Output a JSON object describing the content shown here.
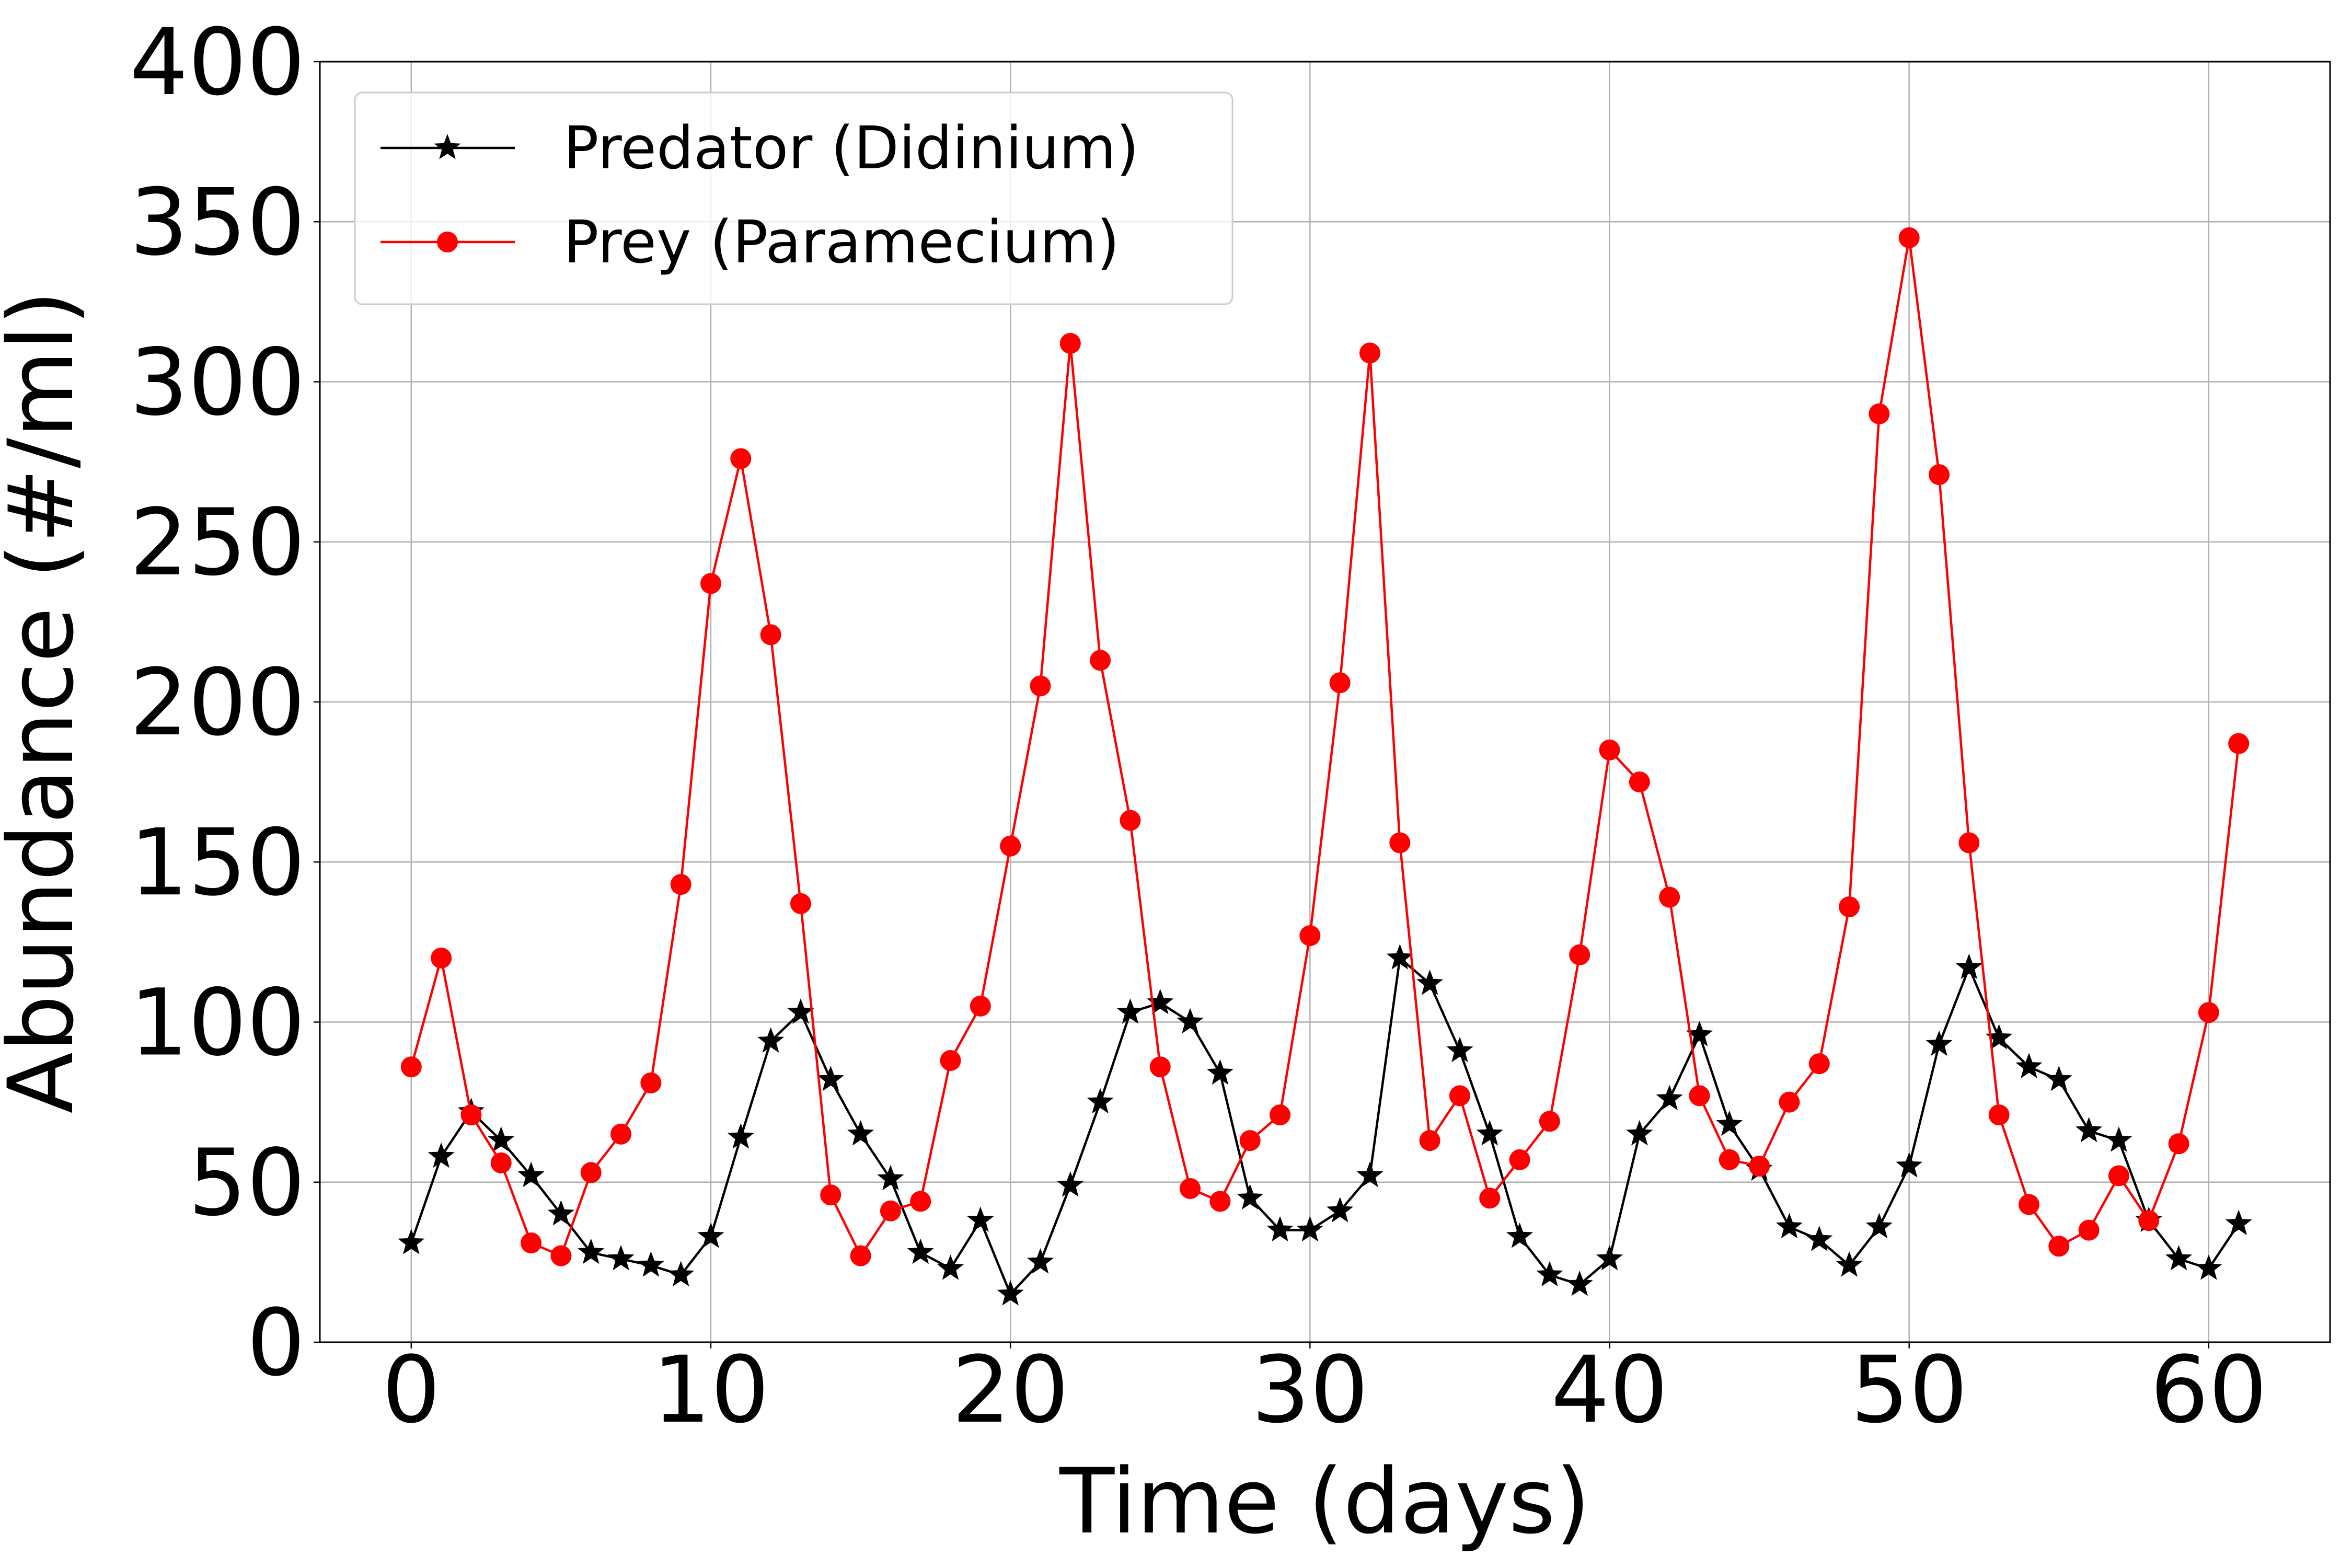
{
  "chart_data": {
    "type": "line",
    "title": "",
    "xlabel": "Time (days)",
    "ylabel": "Abundance (#/ml)",
    "xlim": [
      -3.05,
      64.05
    ],
    "ylim": [
      0,
      400
    ],
    "xticks": [
      0,
      10,
      20,
      30,
      40,
      50,
      60
    ],
    "yticks": [
      0,
      50,
      100,
      150,
      200,
      250,
      300,
      350,
      400
    ],
    "grid": true,
    "legend_position": "top-left",
    "x": [
      0,
      1,
      2,
      3,
      4,
      5,
      6,
      7,
      8,
      9,
      10,
      11,
      12,
      13,
      14,
      15,
      16,
      17,
      18,
      19,
      20,
      21,
      22,
      23,
      24,
      25,
      26,
      27,
      28,
      29,
      30,
      31,
      32,
      33,
      34,
      35,
      36,
      37,
      38,
      39,
      40,
      41,
      42,
      43,
      44,
      45,
      46,
      47,
      48,
      49,
      50,
      51,
      52,
      53,
      54,
      55,
      56,
      57,
      58,
      59,
      60,
      61
    ],
    "series": [
      {
        "name": "Predator (Didinium)",
        "color": "#000000",
        "marker": "star",
        "values": [
          31,
          58,
          72,
          63,
          52,
          40,
          28,
          26,
          24,
          21,
          33,
          64,
          94,
          103,
          82,
          65,
          51,
          28,
          23,
          38,
          15,
          25,
          49,
          75,
          103,
          106,
          100,
          84,
          45,
          35,
          35,
          41,
          52,
          120,
          112,
          91,
          65,
          33,
          21,
          18,
          26,
          65,
          76,
          96,
          68,
          54,
          36,
          32,
          24,
          36,
          55,
          93,
          117,
          95,
          86,
          82,
          66,
          63,
          38,
          26,
          23,
          37
        ]
      },
      {
        "name": "Prey (Paramecium)",
        "color": "#ff0000",
        "marker": "circle",
        "values": [
          86,
          120,
          71,
          56,
          31,
          27,
          53,
          65,
          81,
          143,
          237,
          276,
          221,
          137,
          46,
          27,
          41,
          44,
          88,
          105,
          155,
          205,
          312,
          213,
          163,
          86,
          48,
          44,
          63,
          71,
          127,
          206,
          309,
          156,
          63,
          77,
          45,
          57,
          69,
          121,
          185,
          175,
          139,
          77,
          57,
          55,
          75,
          87,
          136,
          290,
          345,
          271,
          156,
          71,
          43,
          30,
          35,
          52,
          38,
          62,
          103,
          187
        ]
      }
    ]
  }
}
